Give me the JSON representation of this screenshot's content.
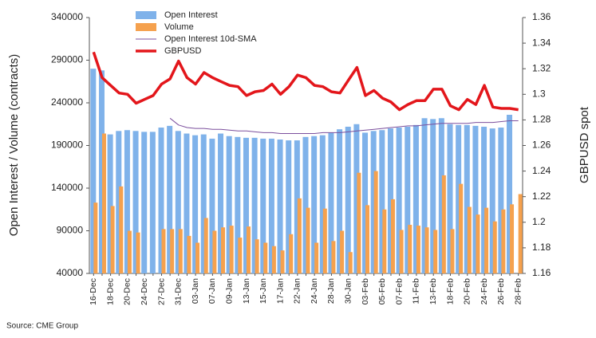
{
  "chart_data": {
    "type": "bar-line",
    "y_label": "Open Interest / Volume (contracts)",
    "y2_label": "GBPUSD spot",
    "source": "Source: CME Group",
    "categories": [
      "16-Dec",
      null,
      "18-Dec",
      null,
      "20-Dec",
      null,
      "24-Dec",
      null,
      "27-Dec",
      null,
      "31-Dec",
      null,
      "03-Jan",
      null,
      "07-Jan",
      null,
      "09-Jan",
      null,
      "13-Jan",
      null,
      "15-Jan",
      null,
      "17-Jan",
      null,
      "22-Jan",
      null,
      "24-Jan",
      null,
      "28-Jan",
      null,
      "30-Jan",
      null,
      "03-Feb",
      null,
      "05-Feb",
      null,
      "07-Feb",
      null,
      "11-Feb",
      null,
      "13-Feb",
      null,
      "18-Feb",
      null,
      "20-Feb",
      null,
      "24-Feb",
      null,
      "26-Feb",
      null,
      "28-Feb"
    ],
    "series": [
      {
        "name": "Open Interest",
        "kind": "bar",
        "color": "#7fb2ea",
        "values": [
          280000,
          278000,
          203000,
          207000,
          208000,
          207000,
          206000,
          206000,
          211000,
          213000,
          207000,
          204000,
          202000,
          203000,
          198000,
          204000,
          201000,
          200000,
          199000,
          199000,
          198000,
          198000,
          197000,
          196000,
          196000,
          200000,
          201000,
          202000,
          205000,
          209000,
          212000,
          215000,
          205000,
          207000,
          208000,
          210000,
          211000,
          212000,
          214000,
          222000,
          221000,
          222000,
          215000,
          214000,
          214000,
          213000,
          212000,
          210000,
          211000,
          226000,
          null
        ]
      },
      {
        "name": "Volume",
        "kind": "bar",
        "color": "#f5a14e",
        "values": [
          123000,
          204000,
          119000,
          142000,
          90000,
          88000,
          null,
          null,
          92000,
          92000,
          92000,
          84000,
          76000,
          105000,
          90000,
          94000,
          96000,
          82000,
          95000,
          80000,
          76000,
          72000,
          67000,
          86000,
          128000,
          117000,
          76000,
          116000,
          78000,
          90000,
          65000,
          158000,
          120000,
          160000,
          115000,
          127000,
          91000,
          97000,
          96000,
          94000,
          91000,
          155000,
          92000,
          145000,
          118000,
          109000,
          117000,
          101000,
          115000,
          121000,
          133000
        ]
      },
      {
        "name": "Open Interest 10d-SMA",
        "kind": "line",
        "color": "#7b4f9d",
        "width": 1,
        "values": [
          null,
          null,
          null,
          null,
          null,
          null,
          null,
          null,
          null,
          222000,
          214000,
          211000,
          210000,
          210000,
          209000,
          209000,
          208000,
          207000,
          207000,
          206000,
          205000,
          205000,
          204000,
          204000,
          204000,
          204000,
          204000,
          205000,
          205000,
          205000,
          206000,
          207000,
          208000,
          209000,
          210000,
          211000,
          212000,
          213000,
          213000,
          214000,
          215000,
          216000,
          216000,
          216000,
          216000,
          217000,
          217000,
          217000,
          218000,
          219000,
          219000
        ]
      },
      {
        "name": "GBPUSD",
        "kind": "line",
        "axis": "y2",
        "color": "#e3161b",
        "width": 3.5,
        "values": [
          1.333,
          1.313,
          1.307,
          1.301,
          1.3,
          1.293,
          1.296,
          1.299,
          1.308,
          1.312,
          1.326,
          1.313,
          1.308,
          1.317,
          1.313,
          1.31,
          1.307,
          1.306,
          1.299,
          1.302,
          1.303,
          1.308,
          1.3,
          1.306,
          1.315,
          1.313,
          1.307,
          1.306,
          1.302,
          1.301,
          1.311,
          1.321,
          1.299,
          1.303,
          1.297,
          1.294,
          1.288,
          1.292,
          1.295,
          1.295,
          1.304,
          1.304,
          1.291,
          1.288,
          1.296,
          1.292,
          1.307,
          1.29,
          1.289,
          1.289,
          1.288
        ]
      }
    ],
    "ylim": [
      40000,
      340000
    ],
    "yticks": [
      40000,
      90000,
      140000,
      190000,
      240000,
      290000,
      340000
    ],
    "y2lim": [
      1.16,
      1.36
    ],
    "y2ticks": [
      1.16,
      1.18,
      1.2,
      1.22,
      1.24,
      1.26,
      1.28,
      1.3,
      1.32,
      1.34,
      1.36
    ],
    "grid": false
  }
}
